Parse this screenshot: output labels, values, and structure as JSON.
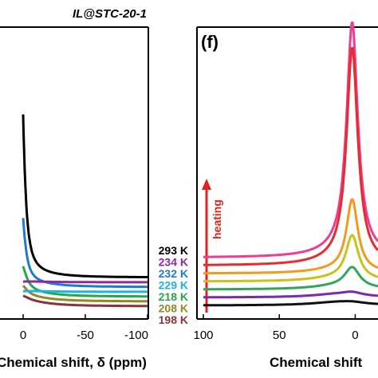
{
  "chart_data": [
    {
      "type": "line",
      "title": "IL@STC-20-1",
      "xlabel": "Chemical shift, δ (ppm)",
      "xlim": [
        0,
        -100
      ],
      "x_ticks": [
        "0",
        "-50",
        "-100"
      ],
      "peak_ppm": 2,
      "baseline_step": 8,
      "series": [
        {
          "name": "293 K",
          "color": "#000000",
          "peak_height": 290,
          "half_width_ppm": 3.0
        },
        {
          "name": "234 K",
          "color": "#8e2a9c",
          "peak_height": 0,
          "half_width_ppm": 3.0
        },
        {
          "name": "232 K",
          "color": "#1e7ad1",
          "peak_height": 110,
          "half_width_ppm": 3.5
        },
        {
          "name": "229 K",
          "color": "#1db3e6",
          "peak_height": 0,
          "half_width_ppm": 3.5
        },
        {
          "name": "218 K",
          "color": "#24a84a",
          "peak_height": 40,
          "half_width_ppm": 5.0
        },
        {
          "name": "208 K",
          "color": "#8f8a24",
          "peak_height": 18,
          "half_width_ppm": 6.0
        },
        {
          "name": "198 K",
          "color": "#8b3338",
          "peak_height": 10,
          "half_width_ppm": 8.0
        }
      ]
    },
    {
      "type": "line",
      "panel_label": "(f)",
      "xlabel": "Chemical shift",
      "xlim": [
        100,
        -15
      ],
      "x_ticks": [
        "100",
        "50",
        "0"
      ],
      "peak_ppm": 2,
      "arrow_label": "heating",
      "arrow_color": "#e2231a",
      "series": [
        {
          "color": "#111111",
          "peak_height": 2,
          "half_width_ppm": 10
        },
        {
          "color": "#7a2aa8",
          "peak_height": 4,
          "half_width_ppm": 8
        },
        {
          "color": "#2fa75a",
          "peak_height": 25,
          "half_width_ppm": 6
        },
        {
          "color": "#c9c21a",
          "peak_height": 55,
          "half_width_ppm": 5
        },
        {
          "color": "#f39a1e",
          "peak_height": 90,
          "half_width_ppm": 4.5
        },
        {
          "color": "#e52d2d",
          "peak_height": 270,
          "half_width_ppm": 4.5
        },
        {
          "color": "#ec3e96",
          "peak_height": 292,
          "half_width_ppm": 4.5
        }
      ]
    }
  ]
}
